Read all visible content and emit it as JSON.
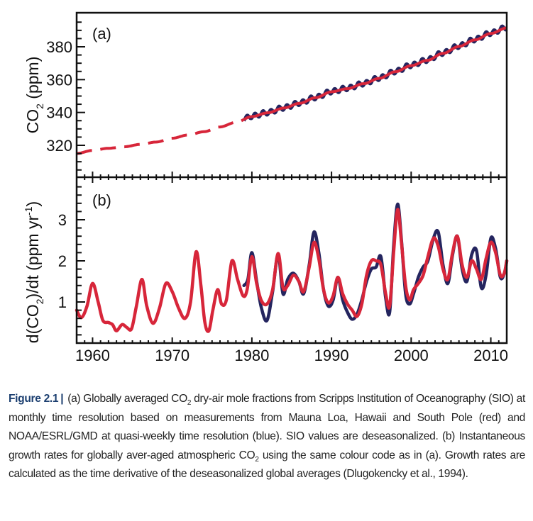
{
  "figure": {
    "number": "Figure 2.1",
    "caption_parts": {
      "p1": "(a) Globally averaged CO",
      "p1_sub": "2",
      "p2": " dry-air mole fractions from Scripps Institution of Oceanography (SIO) at monthly time resolution based on measurements from Mauna Loa, Hawaii and South Pole (red) and NOAA/ESRL/GMD at quasi-weekly time resolution (blue). SIO values are deseasonalized. (b) Instantaneous growth rates for globally aver-aged atmospheric CO",
      "p2_sub": "2",
      "p3": " using the same colour code as in (a). Growth rates are calculated as the time derivative of the deseasonalized global averages (Dlugokencky et al., 1994)."
    }
  },
  "colors": {
    "sio_red": "#d7263a",
    "noaa_blue": "#24255f",
    "axis": "#111111"
  },
  "chart_data": [
    {
      "id": "a",
      "type": "line",
      "panel_label": "(a)",
      "title": "",
      "xlabel": "",
      "ylabel": "CO2 (ppm)",
      "ylabel_main": "CO",
      "ylabel_sub": "2",
      "ylabel_tail": " (ppm)",
      "xlim": [
        1958,
        2012
      ],
      "ylim": [
        300,
        400
      ],
      "yticks": [
        320,
        340,
        360,
        380
      ],
      "ytick_labels": [
        "320",
        "340",
        "360",
        "380"
      ],
      "grid": false,
      "legend": "none",
      "series": [
        {
          "name": "SIO (Mauna Loa & South Pole), deseasonalized",
          "color": "red",
          "style": "dashed-before-1979-solid-after",
          "x": [
            1958,
            1960,
            1962,
            1964,
            1966,
            1968,
            1970,
            1972,
            1974,
            1976,
            1978,
            1980,
            1982,
            1984,
            1986,
            1988,
            1990,
            1992,
            1994,
            1996,
            1998,
            2000,
            2002,
            2004,
            2006,
            2008,
            2010,
            2012
          ],
          "y": [
            315.0,
            316.9,
            318.2,
            319.1,
            320.6,
            322.0,
            324.3,
            326.3,
            328.3,
            331.2,
            334.0,
            337.5,
            339.8,
            342.7,
            345.6,
            349.0,
            352.6,
            354.5,
            357.5,
            360.8,
            364.8,
            368.5,
            371.7,
            376.0,
            380.2,
            384.2,
            388.1,
            391.5
          ]
        },
        {
          "name": "NOAA/ESRL/GMD (quasi-weekly)",
          "color": "blue",
          "style": "solid-with-seasonal-cycle",
          "seasonal_amplitude_ppm": 1.5,
          "x": [
            1979,
            1980,
            1982,
            1984,
            1986,
            1988,
            1990,
            1992,
            1994,
            1996,
            1998,
            2000,
            2002,
            2004,
            2006,
            2008,
            2010,
            2012
          ],
          "y": [
            336.2,
            337.8,
            340.0,
            342.9,
            345.8,
            349.2,
            352.8,
            354.8,
            357.6,
            361.0,
            365.0,
            368.8,
            372.0,
            376.3,
            380.5,
            384.5,
            388.4,
            391.8
          ]
        }
      ]
    },
    {
      "id": "b",
      "type": "line",
      "panel_label": "(b)",
      "title": "",
      "xlabel": "",
      "ylabel": "d(CO2)/dt (ppm yr-1)",
      "ylabel_p1": "d(CO",
      "ylabel_sub": "2",
      "ylabel_p2": ")/dt (ppm yr",
      "ylabel_sup": "-1",
      "ylabel_p3": ")",
      "xlim": [
        1958,
        2012
      ],
      "ylim": [
        0,
        4
      ],
      "yticks": [
        1,
        2,
        3
      ],
      "ytick_labels": [
        "1",
        "2",
        "3"
      ],
      "xticks": [
        1960,
        1970,
        1980,
        1990,
        2000,
        2010
      ],
      "xtick_labels": [
        "1960",
        "1970",
        "1980",
        "1990",
        "2000",
        "2010"
      ],
      "grid": false,
      "legend": "none",
      "series": [
        {
          "name": "SIO growth rate",
          "color": "red",
          "x": [
            1958.0,
            1958.6,
            1959.3,
            1960.0,
            1960.7,
            1961.3,
            1962.0,
            1962.5,
            1963.0,
            1963.7,
            1964.3,
            1964.9,
            1965.5,
            1966.2,
            1966.8,
            1967.6,
            1968.4,
            1969.2,
            1970.0,
            1970.8,
            1971.6,
            1972.3,
            1973.0,
            1973.6,
            1974.1,
            1974.6,
            1975.1,
            1975.7,
            1976.2,
            1976.8,
            1977.5,
            1978.2,
            1978.9,
            1979.4,
            1980.0,
            1980.6,
            1981.2,
            1981.9,
            1982.6,
            1983.3,
            1983.9,
            1984.5,
            1985.2,
            1985.9,
            1986.5,
            1987.2,
            1987.8,
            1988.4,
            1989.0,
            1989.6,
            1990.2,
            1990.8,
            1991.4,
            1992.0,
            1992.6,
            1993.2,
            1993.8,
            1994.4,
            1995.0,
            1995.6,
            1996.2,
            1996.8,
            1997.3,
            1997.8,
            1998.3,
            1998.8,
            1999.3,
            1999.8,
            2000.3,
            2000.9,
            2001.5,
            2002.1,
            2002.8,
            2003.4,
            2004.0,
            2004.6,
            2005.2,
            2005.8,
            2006.4,
            2007.0,
            2007.6,
            2008.2,
            2008.8,
            2009.4,
            2010.0,
            2010.6,
            2011.2,
            2011.7,
            2012.0
          ],
          "y": [
            0.8,
            0.62,
            0.9,
            1.45,
            1.0,
            0.55,
            0.5,
            0.45,
            0.3,
            0.45,
            0.38,
            0.35,
            0.9,
            1.55,
            0.9,
            0.48,
            0.85,
            1.45,
            1.25,
            0.85,
            0.6,
            1.0,
            2.22,
            1.4,
            0.5,
            0.3,
            0.8,
            1.3,
            0.95,
            1.05,
            2.0,
            1.55,
            1.15,
            1.3,
            2.1,
            1.45,
            1.03,
            0.95,
            1.3,
            2.18,
            1.35,
            1.4,
            1.65,
            1.5,
            1.25,
            1.85,
            2.45,
            2.05,
            1.3,
            0.98,
            1.15,
            1.6,
            1.2,
            0.95,
            0.8,
            0.65,
            0.95,
            1.65,
            2.0,
            2.0,
            1.9,
            1.2,
            0.9,
            2.2,
            3.25,
            2.4,
            1.4,
            1.05,
            1.3,
            1.45,
            1.65,
            2.1,
            2.55,
            2.35,
            1.8,
            1.55,
            2.2,
            2.6,
            1.9,
            1.6,
            2.0,
            1.8,
            1.55,
            2.05,
            2.45,
            2.2,
            1.65,
            1.7,
            2.0
          ]
        },
        {
          "name": "NOAA growth rate",
          "color": "blue",
          "x": [
            1979.0,
            1979.5,
            1980.0,
            1980.6,
            1981.2,
            1981.9,
            1982.6,
            1983.3,
            1983.9,
            1984.5,
            1985.2,
            1985.9,
            1986.5,
            1987.2,
            1987.8,
            1988.4,
            1989.0,
            1989.6,
            1990.2,
            1990.8,
            1991.4,
            1992.0,
            1992.6,
            1993.2,
            1993.8,
            1994.4,
            1995.0,
            1995.6,
            1996.2,
            1996.8,
            1997.3,
            1997.8,
            1998.3,
            1998.8,
            1999.3,
            1999.8,
            2000.3,
            2000.9,
            2001.5,
            2002.1,
            2002.8,
            2003.4,
            2004.0,
            2004.6,
            2005.2,
            2005.8,
            2006.4,
            2007.0,
            2007.6,
            2008.2,
            2008.8,
            2009.4,
            2010.0,
            2010.6,
            2011.2,
            2011.7,
            2012.0
          ],
          "y": [
            1.4,
            1.55,
            2.2,
            1.5,
            0.85,
            0.55,
            1.25,
            2.15,
            1.2,
            1.55,
            1.7,
            1.5,
            1.2,
            1.9,
            2.7,
            2.2,
            1.3,
            0.9,
            1.05,
            1.6,
            1.05,
            0.75,
            0.58,
            0.7,
            1.05,
            1.5,
            1.8,
            1.85,
            2.1,
            1.1,
            0.75,
            2.35,
            3.38,
            2.45,
            1.2,
            0.95,
            1.2,
            1.6,
            1.85,
            2.0,
            2.55,
            2.7,
            1.9,
            1.45,
            2.15,
            2.6,
            1.8,
            1.5,
            2.15,
            2.25,
            1.35,
            1.65,
            2.55,
            2.3,
            1.6,
            1.7,
            2.0
          ]
        }
      ]
    }
  ]
}
